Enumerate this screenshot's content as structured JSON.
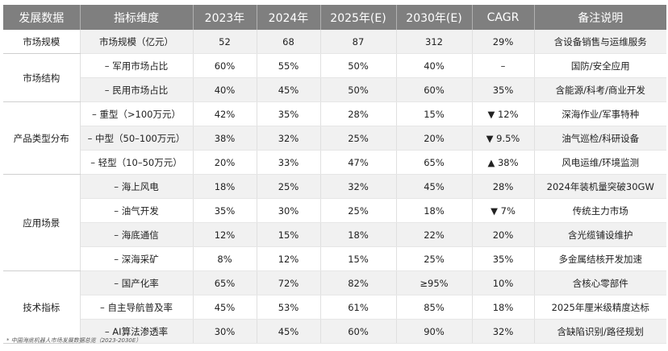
{
  "headers": [
    "发展数据",
    "指标维度",
    "2023年",
    "2024年",
    "2025年(E)",
    "2030年(E)",
    "CAGR",
    "备注说明"
  ],
  "groups": [
    {
      "name": "市场规模",
      "rows": [
        {
          "metric": "市场规模（亿元）",
          "v2023": "52",
          "v2024": "68",
          "v2025": "87",
          "v2030": "312",
          "cagr": "29%",
          "note": "含设备销售与运维服务"
        }
      ]
    },
    {
      "name": "市场结构",
      "rows": [
        {
          "metric": "– 军用市场占比",
          "v2023": "60%",
          "v2024": "55%",
          "v2025": "50%",
          "v2030": "40%",
          "cagr": "–",
          "note": "国防/安全应用"
        },
        {
          "metric": "– 民用市场占比",
          "v2023": "40%",
          "v2024": "45%",
          "v2025": "50%",
          "v2030": "60%",
          "cagr": "35%",
          "note": "含能源/科考/商业开发"
        }
      ]
    },
    {
      "name": "产品类型分布",
      "rows": [
        {
          "metric": "– 重型（>100万元）",
          "v2023": "42%",
          "v2024": "35%",
          "v2025": "28%",
          "v2030": "15%",
          "cagr": "▼ 12%",
          "note": "深海作业/军事特种"
        },
        {
          "metric": "– 中型（50–100万元）",
          "v2023": "38%",
          "v2024": "32%",
          "v2025": "25%",
          "v2030": "20%",
          "cagr": "▼ 9.5%",
          "note": "油气巡检/科研设备"
        },
        {
          "metric": "– 轻型（10–50万元）",
          "v2023": "20%",
          "v2024": "33%",
          "v2025": "47%",
          "v2030": "65%",
          "cagr": "▲ 38%",
          "note": "风电运维/环境监测"
        }
      ]
    },
    {
      "name": "应用场景",
      "rows": [
        {
          "metric": "– 海上风电",
          "v2023": "18%",
          "v2024": "25%",
          "v2025": "32%",
          "v2030": "45%",
          "cagr": "28%",
          "note": "2024年装机量突破30GW"
        },
        {
          "metric": "– 油气开发",
          "v2023": "35%",
          "v2024": "30%",
          "v2025": "25%",
          "v2030": "18%",
          "cagr": "▼ 7%",
          "note": "传统主力市场"
        },
        {
          "metric": "– 海底通信",
          "v2023": "12%",
          "v2024": "15%",
          "v2025": "18%",
          "v2030": "22%",
          "cagr": "20%",
          "note": "含光缆铺设维护"
        },
        {
          "metric": "– 深海采矿",
          "v2023": "8%",
          "v2024": "12%",
          "v2025": "15%",
          "v2030": "25%",
          "cagr": "35%",
          "note": "多金属结核开发加速"
        }
      ]
    },
    {
      "name": "技术指标",
      "rows": [
        {
          "metric": "– 国产化率",
          "v2023": "65%",
          "v2024": "72%",
          "v2025": "82%",
          "v2030": "≥95%",
          "cagr": "10%",
          "note": "含核心零部件"
        },
        {
          "metric": "– 自主导航普及率",
          "v2023": "45%",
          "v2024": "53%",
          "v2025": "61%",
          "v2030": "85%",
          "cagr": "18%",
          "note": "2025年厘米级精度达标"
        },
        {
          "metric": "– AI算法渗透率",
          "v2023": "30%",
          "v2024": "45%",
          "v2025": "60%",
          "v2030": "90%",
          "cagr": "32%",
          "note": "含缺陷识别/路径规划"
        }
      ]
    }
  ],
  "footnote": "* 中国海底机器人市场发展数据总览（2023-2030E）"
}
